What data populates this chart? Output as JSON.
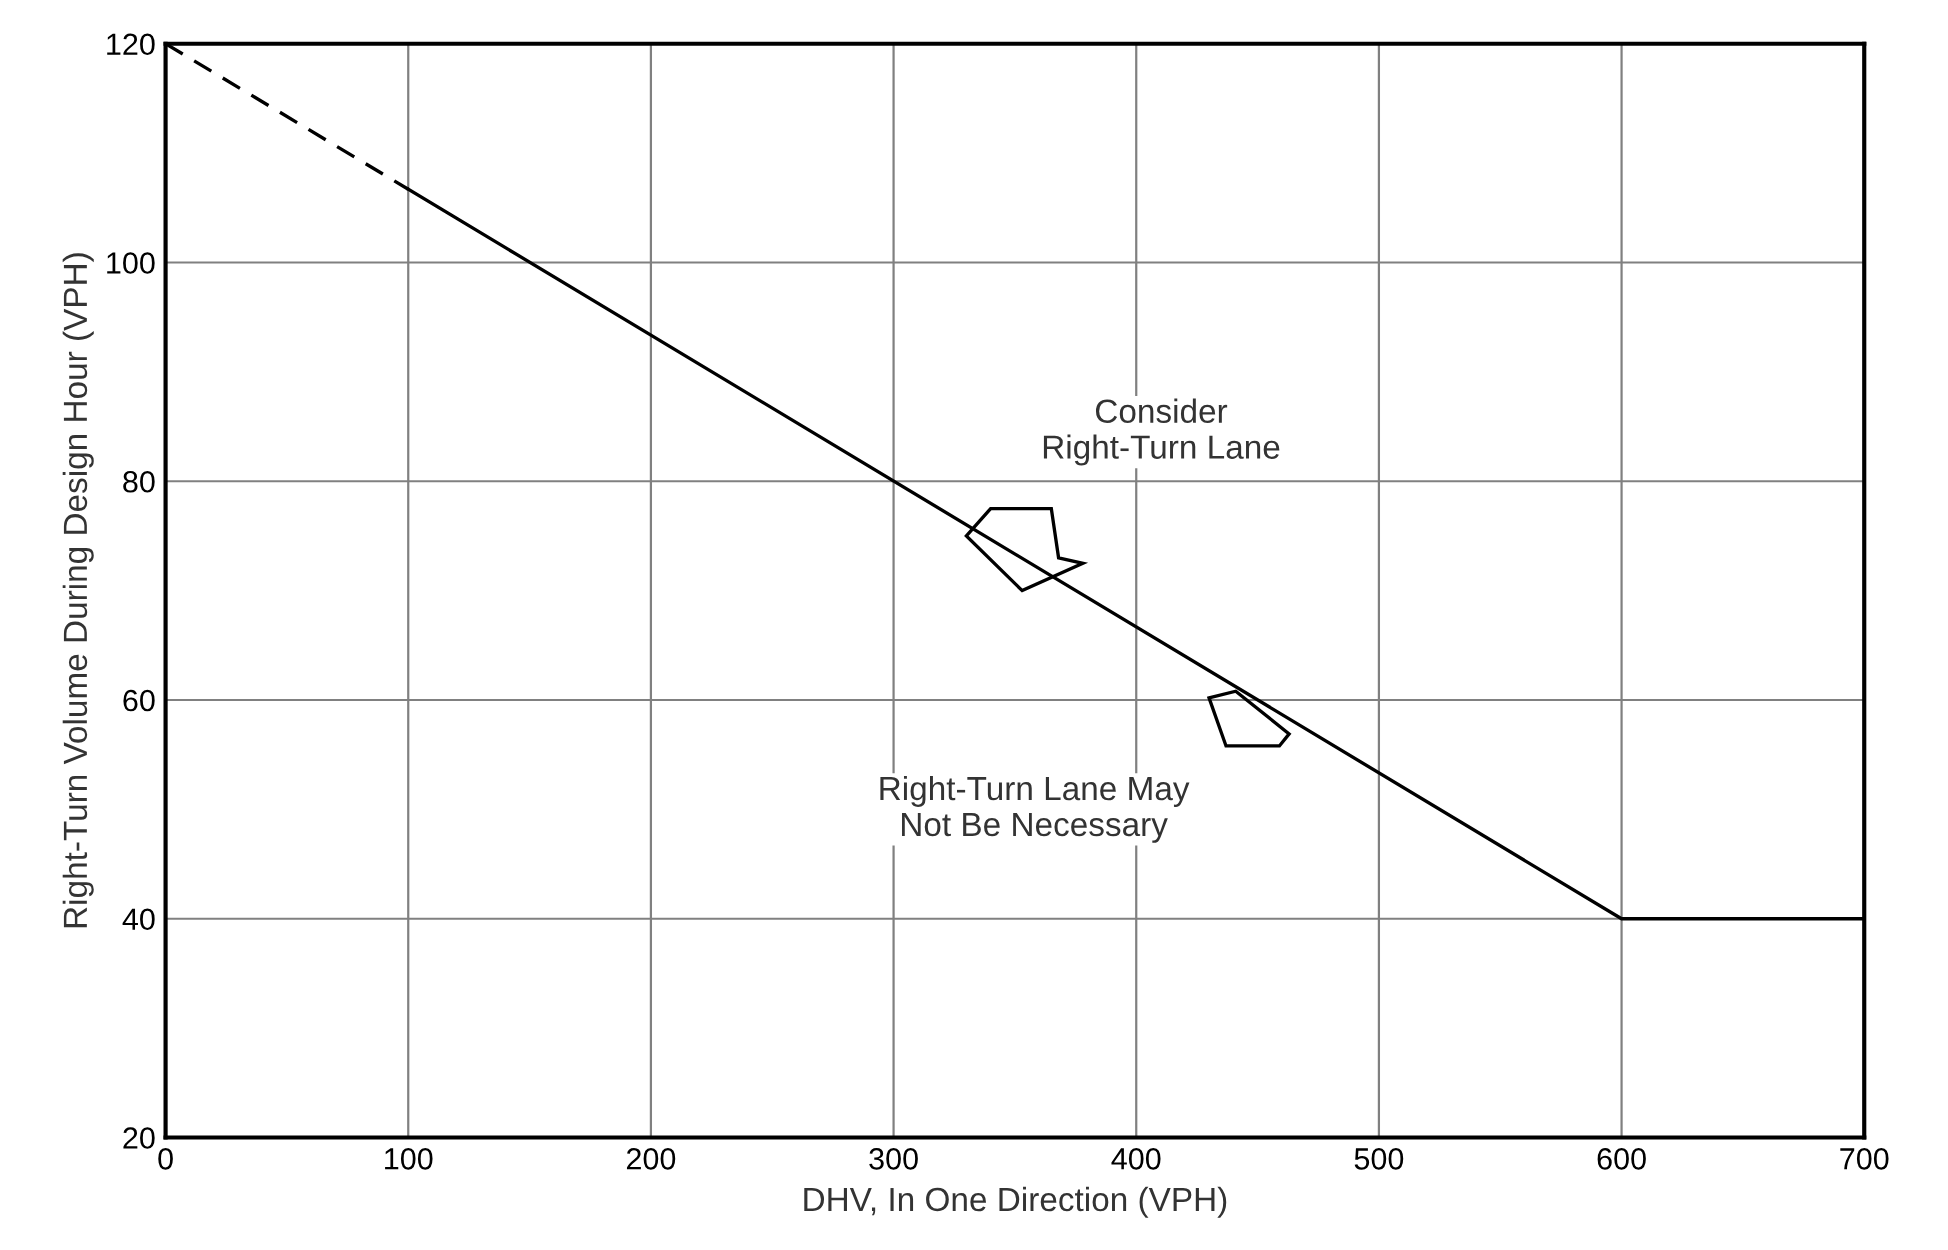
{
  "chart_data": {
    "type": "line",
    "xlabel": "DHV, In One Direction (VPH)",
    "ylabel": "Right-Turn Volume During Design Hour (VPH)",
    "series": [
      {
        "x": [
          0,
          100
        ],
        "values": [
          120,
          106.7
        ],
        "color": "#000000",
        "line_style": "dashed"
      },
      {
        "x": [
          100,
          600,
          700
        ],
        "values": [
          106.7,
          40,
          40
        ],
        "color": "#000000",
        "line_style": "solid"
      }
    ],
    "xlim": [
      0,
      700
    ],
    "ylim": [
      20,
      120
    ],
    "xticks": [
      0,
      100,
      200,
      300,
      400,
      500,
      600,
      700
    ],
    "yticks": [
      20,
      40,
      60,
      80,
      100,
      120
    ],
    "grid": true,
    "marker": "none",
    "annotations": [
      "Consider\nRight-Turn Lane",
      "Right-Turn Lane May\nNot Be Necessary"
    ]
  }
}
